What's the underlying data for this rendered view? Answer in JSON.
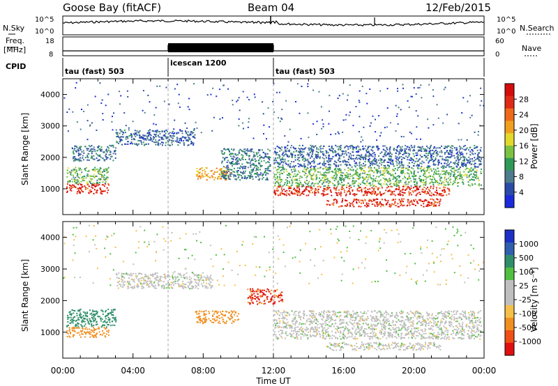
{
  "header": {
    "station": "Goose Bay (fitACF)",
    "beam": "Beam 04",
    "date": "12/Feb/2015"
  },
  "noise_panel": {
    "left_label": "N.Sky",
    "right_label": "N.Search",
    "left_ticks": [
      "10^5",
      "10^0"
    ],
    "right_ticks": [
      "10^5",
      "10^0"
    ]
  },
  "freq_panel": {
    "left_label_line1": "Freq.",
    "left_label_line2": "[MHz]",
    "right_label": "Nave",
    "left_ticks": [
      "18",
      "8"
    ],
    "right_ticks": [
      "60",
      "0"
    ]
  },
  "cpid": {
    "label": "CPID",
    "segments": [
      {
        "name": "tau (fast) 503",
        "start_h": 0,
        "end_h": 6
      },
      {
        "name": "icescan 1200",
        "start_h": 6,
        "end_h": 12
      },
      {
        "name": "tau (fast) 503",
        "start_h": 12,
        "end_h": 24
      }
    ]
  },
  "colors": {
    "power_scale": [
      "#1b2bdc",
      "#2a4ba8",
      "#4d7c8c",
      "#2e9a58",
      "#7cc242",
      "#e3d92c",
      "#f0a020",
      "#ee6a1a",
      "#e02a16",
      "#d40c0c"
    ],
    "velocity_scale": [
      "#1c30c8",
      "#2f5fae",
      "#2f8f6a",
      "#4fc040",
      "#bfbfbf",
      "#bfbfbf",
      "#f4c04a",
      "#f09020",
      "#ee5016",
      "#e01010"
    ]
  },
  "chart_data": [
    {
      "type": "heatmap",
      "panel": "power",
      "ylabel": "Slant Range [km]",
      "xlabel": "Time UT",
      "xlim_hours": [
        0,
        24
      ],
      "ylim_km": [
        180,
        4500
      ],
      "x_ticks": [
        "00:00",
        "04:00",
        "08:00",
        "12:00",
        "16:00",
        "20:00",
        "00:00"
      ],
      "y_ticks": [
        1000,
        2000,
        3000,
        4000
      ],
      "colorbar_label": "Power [dB]",
      "colorbar_ticks": [
        "28",
        "24",
        "20",
        "16",
        "12",
        "8",
        "4"
      ],
      "colorbar_range": [
        0,
        30
      ],
      "echo_regions": [
        {
          "t": [
            0.2,
            2.6
          ],
          "r": [
            860,
            1180
          ],
          "value": 27
        },
        {
          "t": [
            0.2,
            2.6
          ],
          "r": [
            1180,
            1700
          ],
          "value": 12
        },
        {
          "t": [
            0.5,
            3.0
          ],
          "r": [
            1900,
            2400
          ],
          "value": 7
        },
        {
          "t": [
            3.0,
            7.5
          ],
          "r": [
            2400,
            2900
          ],
          "value": 6
        },
        {
          "t": [
            7.5,
            9.5
          ],
          "r": [
            1300,
            1700
          ],
          "value": 20
        },
        {
          "t": [
            9.0,
            11.8
          ],
          "r": [
            1300,
            2300
          ],
          "value": 8
        },
        {
          "t": [
            12.0,
            23.8
          ],
          "r": [
            1700,
            2400
          ],
          "value": 6
        },
        {
          "t": [
            12.0,
            23.8
          ],
          "r": [
            1100,
            1700
          ],
          "value": 12
        },
        {
          "t": [
            12.0,
            22.0
          ],
          "r": [
            800,
            1100
          ],
          "value": 26
        },
        {
          "t": [
            15.0,
            21.5
          ],
          "r": [
            450,
            700
          ],
          "value": 26
        }
      ]
    },
    {
      "type": "heatmap",
      "panel": "velocity",
      "ylabel": "Slant Range [km]",
      "xlabel": "Time UT",
      "xlim_hours": [
        0,
        24
      ],
      "ylim_km": [
        180,
        4500
      ],
      "x_ticks": [
        "00:00",
        "04:00",
        "08:00",
        "12:00",
        "16:00",
        "20:00",
        "00:00"
      ],
      "y_ticks": [
        1000,
        2000,
        3000,
        4000
      ],
      "colorbar_label": "Velocity [m s⁻¹]",
      "colorbar_ticks": [
        "1000",
        "500",
        "100",
        "25",
        "-25",
        "-100",
        "-500",
        "-1000"
      ],
      "echo_regions": [
        {
          "t": [
            0.2,
            2.6
          ],
          "r": [
            860,
            1180
          ],
          "value": -300
        },
        {
          "t": [
            0.2,
            3.0
          ],
          "r": [
            1180,
            1750
          ],
          "value": 200
        },
        {
          "t": [
            3.0,
            8.5
          ],
          "r": [
            2400,
            2900
          ],
          "value": 0
        },
        {
          "t": [
            7.5,
            10.0
          ],
          "r": [
            1300,
            1700
          ],
          "value": -200
        },
        {
          "t": [
            10.5,
            12.5
          ],
          "r": [
            1900,
            2400
          ],
          "value": -600
        },
        {
          "t": [
            12.0,
            23.8
          ],
          "r": [
            800,
            1700
          ],
          "value": 0
        },
        {
          "t": [
            15.0,
            21.5
          ],
          "r": [
            450,
            700
          ],
          "value": 0
        }
      ]
    }
  ],
  "x_axis_label": "Time UT"
}
